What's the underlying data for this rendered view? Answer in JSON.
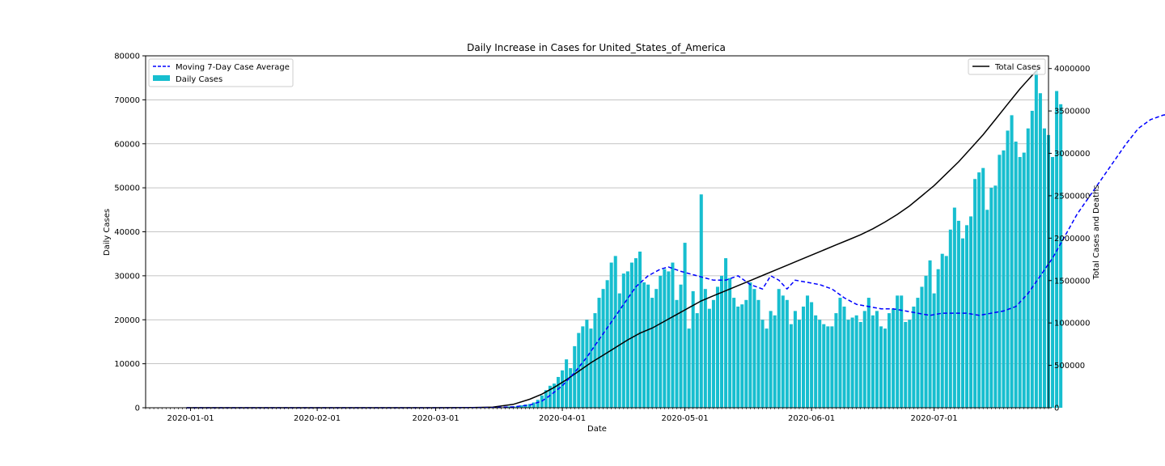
{
  "chart_data": {
    "type": "bar",
    "title": "Daily Increase in Cases for United_States_of_America",
    "xlabel": "Date",
    "ylabel": "Daily Cases",
    "y2label": "Total Cases and Deaths",
    "start_date": "2019-12-31",
    "xlim": [
      "2019-12-21",
      "2020-07-29"
    ],
    "ylim": [
      0,
      80000
    ],
    "y2lim": [
      0,
      4150000
    ],
    "x_ticks": [
      "2020-01-01",
      "2020-02-01",
      "2020-03-01",
      "2020-04-01",
      "2020-05-01",
      "2020-06-01",
      "2020-07-01"
    ],
    "y_ticks": [
      0,
      10000,
      20000,
      30000,
      40000,
      50000,
      60000,
      70000,
      80000
    ],
    "y2_ticks": [
      0,
      500000,
      1000000,
      1500000,
      2000000,
      2500000,
      3000000,
      3500000,
      4000000
    ],
    "grid": "y-major",
    "legend_left": [
      "Moving 7-Day Case Average",
      "Daily Cases"
    ],
    "legend_right": [
      "Total Cases"
    ],
    "legend_left_placement": "top-left",
    "legend_right_placement": "top-right",
    "colors": {
      "bars": "#17becf",
      "moving_avg": "#0000ff",
      "total": "#000000"
    },
    "daily_cases": [
      0,
      0,
      0,
      0,
      0,
      0,
      0,
      0,
      0,
      0,
      0,
      0,
      0,
      0,
      0,
      0,
      0,
      0,
      0,
      0,
      1,
      0,
      0,
      0,
      1,
      0,
      3,
      0,
      0,
      0,
      1,
      1,
      0,
      2,
      0,
      0,
      2,
      0,
      1,
      0,
      0,
      0,
      0,
      1,
      0,
      0,
      0,
      0,
      0,
      0,
      0,
      0,
      0,
      0,
      0,
      0,
      0,
      0,
      0,
      0,
      0,
      0,
      2,
      0,
      5,
      8,
      10,
      15,
      5,
      10,
      5,
      14,
      25,
      33,
      48,
      55,
      100,
      85,
      180,
      280,
      300,
      400,
      550,
      750,
      850,
      1200,
      1800,
      2800,
      4000,
      5000,
      5500,
      7000,
      8500,
      11000,
      9000,
      14000,
      17000,
      18500,
      20000,
      18000,
      21500,
      25000,
      27000,
      29000,
      33000,
      34500,
      26000,
      30500,
      31000,
      33000,
      34000,
      35500,
      28500,
      28000,
      25000,
      27000,
      30000,
      31500,
      31000,
      33000,
      24500,
      28000,
      37500,
      18000,
      26500,
      21500,
      48500,
      27000,
      22500,
      24500,
      27500,
      30000,
      34000,
      29500,
      25000,
      23000,
      23500,
      24500,
      28500,
      27000,
      24500,
      20000,
      18000,
      22000,
      21000,
      27000,
      25500,
      24500,
      19000,
      22000,
      20000,
      23000,
      25500,
      24000,
      21000,
      20000,
      19000,
      18500,
      18500,
      21500,
      25000,
      23000,
      20000,
      20500,
      21000,
      19500,
      22000,
      25000,
      21000,
      22000,
      18500,
      18000,
      21500,
      22500,
      25500,
      25500,
      19500,
      20000,
      23000,
      25000,
      27500,
      30000,
      33500,
      26000,
      31500,
      35000,
      34500,
      40500,
      45500,
      42500,
      38500,
      41500,
      43500,
      52000,
      53500,
      54500,
      45000,
      50000,
      50500,
      57500,
      58500,
      63000,
      66500,
      60500,
      57000,
      58000,
      63500,
      67500,
      76500,
      71500,
      63500,
      62000,
      57000,
      72000,
      69000
    ],
    "moving_avg_7day": [
      [
        0,
        0
      ],
      [
        60,
        0
      ],
      [
        70,
        20
      ],
      [
        75,
        60
      ],
      [
        80,
        200
      ],
      [
        84,
        600
      ],
      [
        87,
        1500
      ],
      [
        89,
        2800
      ],
      [
        92,
        5000
      ],
      [
        95,
        8000
      ],
      [
        98,
        11500
      ],
      [
        101,
        15500
      ],
      [
        104,
        19500
      ],
      [
        107,
        23500
      ],
      [
        110,
        27500
      ],
      [
        113,
        30000
      ],
      [
        116,
        31500
      ],
      [
        118,
        32000
      ],
      [
        121,
        31000
      ],
      [
        125,
        30000
      ],
      [
        129,
        29000
      ],
      [
        132,
        29000
      ],
      [
        135,
        30000
      ],
      [
        138,
        28000
      ],
      [
        141,
        27000
      ],
      [
        143,
        30000
      ],
      [
        145,
        29000
      ],
      [
        147,
        27000
      ],
      [
        149,
        29000
      ],
      [
        152,
        28500
      ],
      [
        155,
        28000
      ],
      [
        158,
        27000
      ],
      [
        161,
        25000
      ],
      [
        164,
        23500
      ],
      [
        167,
        23000
      ],
      [
        170,
        22500
      ],
      [
        173,
        22500
      ],
      [
        176,
        22000
      ],
      [
        179,
        21500
      ],
      [
        182,
        21000
      ],
      [
        185,
        21500
      ],
      [
        188,
        21500
      ],
      [
        191,
        21500
      ],
      [
        194,
        21000
      ],
      [
        197,
        21500
      ],
      [
        200,
        22000
      ],
      [
        203,
        23000
      ],
      [
        206,
        26000
      ],
      [
        209,
        30000
      ],
      [
        212,
        34000
      ],
      [
        215,
        39000
      ],
      [
        218,
        44000
      ],
      [
        221,
        48000
      ],
      [
        224,
        52000
      ],
      [
        227,
        56000
      ],
      [
        230,
        60000
      ],
      [
        233,
        63500
      ],
      [
        236,
        65500
      ],
      [
        239,
        66500
      ],
      [
        242,
        67000
      ]
    ],
    "total_cases": [
      [
        0,
        0
      ],
      [
        60,
        60
      ],
      [
        70,
        2000
      ],
      [
        75,
        8000
      ],
      [
        80,
        40000
      ],
      [
        84,
        100000
      ],
      [
        87,
        160000
      ],
      [
        90,
        240000
      ],
      [
        93,
        330000
      ],
      [
        96,
        430000
      ],
      [
        99,
        530000
      ],
      [
        102,
        620000
      ],
      [
        105,
        710000
      ],
      [
        108,
        800000
      ],
      [
        111,
        880000
      ],
      [
        114,
        940000
      ],
      [
        117,
        1020000
      ],
      [
        120,
        1100000
      ],
      [
        123,
        1180000
      ],
      [
        126,
        1260000
      ],
      [
        129,
        1320000
      ],
      [
        132,
        1380000
      ],
      [
        135,
        1440000
      ],
      [
        138,
        1500000
      ],
      [
        141,
        1560000
      ],
      [
        144,
        1620000
      ],
      [
        147,
        1680000
      ],
      [
        150,
        1740000
      ],
      [
        153,
        1800000
      ],
      [
        156,
        1860000
      ],
      [
        159,
        1920000
      ],
      [
        162,
        1980000
      ],
      [
        165,
        2040000
      ],
      [
        168,
        2110000
      ],
      [
        171,
        2190000
      ],
      [
        174,
        2280000
      ],
      [
        177,
        2380000
      ],
      [
        180,
        2500000
      ],
      [
        183,
        2620000
      ],
      [
        186,
        2760000
      ],
      [
        189,
        2900000
      ],
      [
        192,
        3060000
      ],
      [
        195,
        3220000
      ],
      [
        198,
        3400000
      ],
      [
        201,
        3580000
      ],
      [
        204,
        3760000
      ],
      [
        207,
        3920000
      ],
      [
        209,
        4020000
      ]
    ]
  }
}
